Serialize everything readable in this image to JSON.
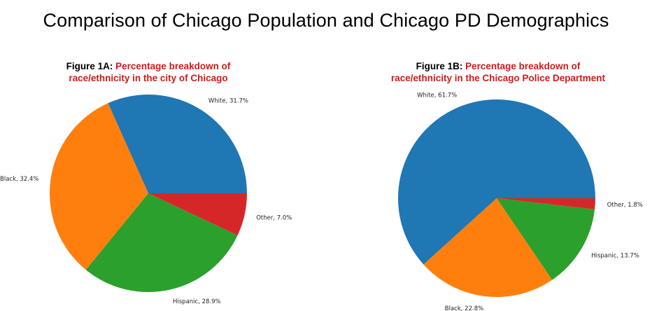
{
  "title": "Comparison of Chicago Population and Chicago PD Demographics",
  "chart_data": [
    {
      "type": "pie",
      "figure_label": "Figure 1A:",
      "title_line1": "Percentage breakdown of",
      "title_line2": "race/ethnicity in the city of Chicago",
      "categories": [
        "White",
        "Hispanic",
        "Black",
        "Other"
      ],
      "values": [
        31.7,
        28.9,
        32.4,
        7.0
      ],
      "labels": [
        "White, 31.7%",
        "Hispanic, 28.9%",
        "Black, 32.4%",
        "Other, 7.0%"
      ],
      "order_plotted": [
        "White",
        "Black",
        "Hispanic",
        "Other"
      ],
      "colors": {
        "White": "#1f77b4",
        "Black": "#ff7f0e",
        "Hispanic": "#2ca02c",
        "Other": "#d62728"
      }
    },
    {
      "type": "pie",
      "figure_label": "Figure 1B:",
      "title_line1": "Percentage breakdown of",
      "title_line2": "race/ethnicity in the Chicago Police Department",
      "categories": [
        "White",
        "Hispanic",
        "Black",
        "Other"
      ],
      "values": [
        61.7,
        13.7,
        22.8,
        1.8
      ],
      "labels": [
        "White, 61.7%",
        "Hispanic, 13.7%",
        "Black, 22.8%",
        "Other, 1.8%"
      ],
      "order_plotted": [
        "White",
        "Black",
        "Hispanic",
        "Other"
      ],
      "colors": {
        "White": "#1f77b4",
        "Black": "#ff7f0e",
        "Hispanic": "#2ca02c",
        "Other": "#d62728"
      }
    }
  ]
}
